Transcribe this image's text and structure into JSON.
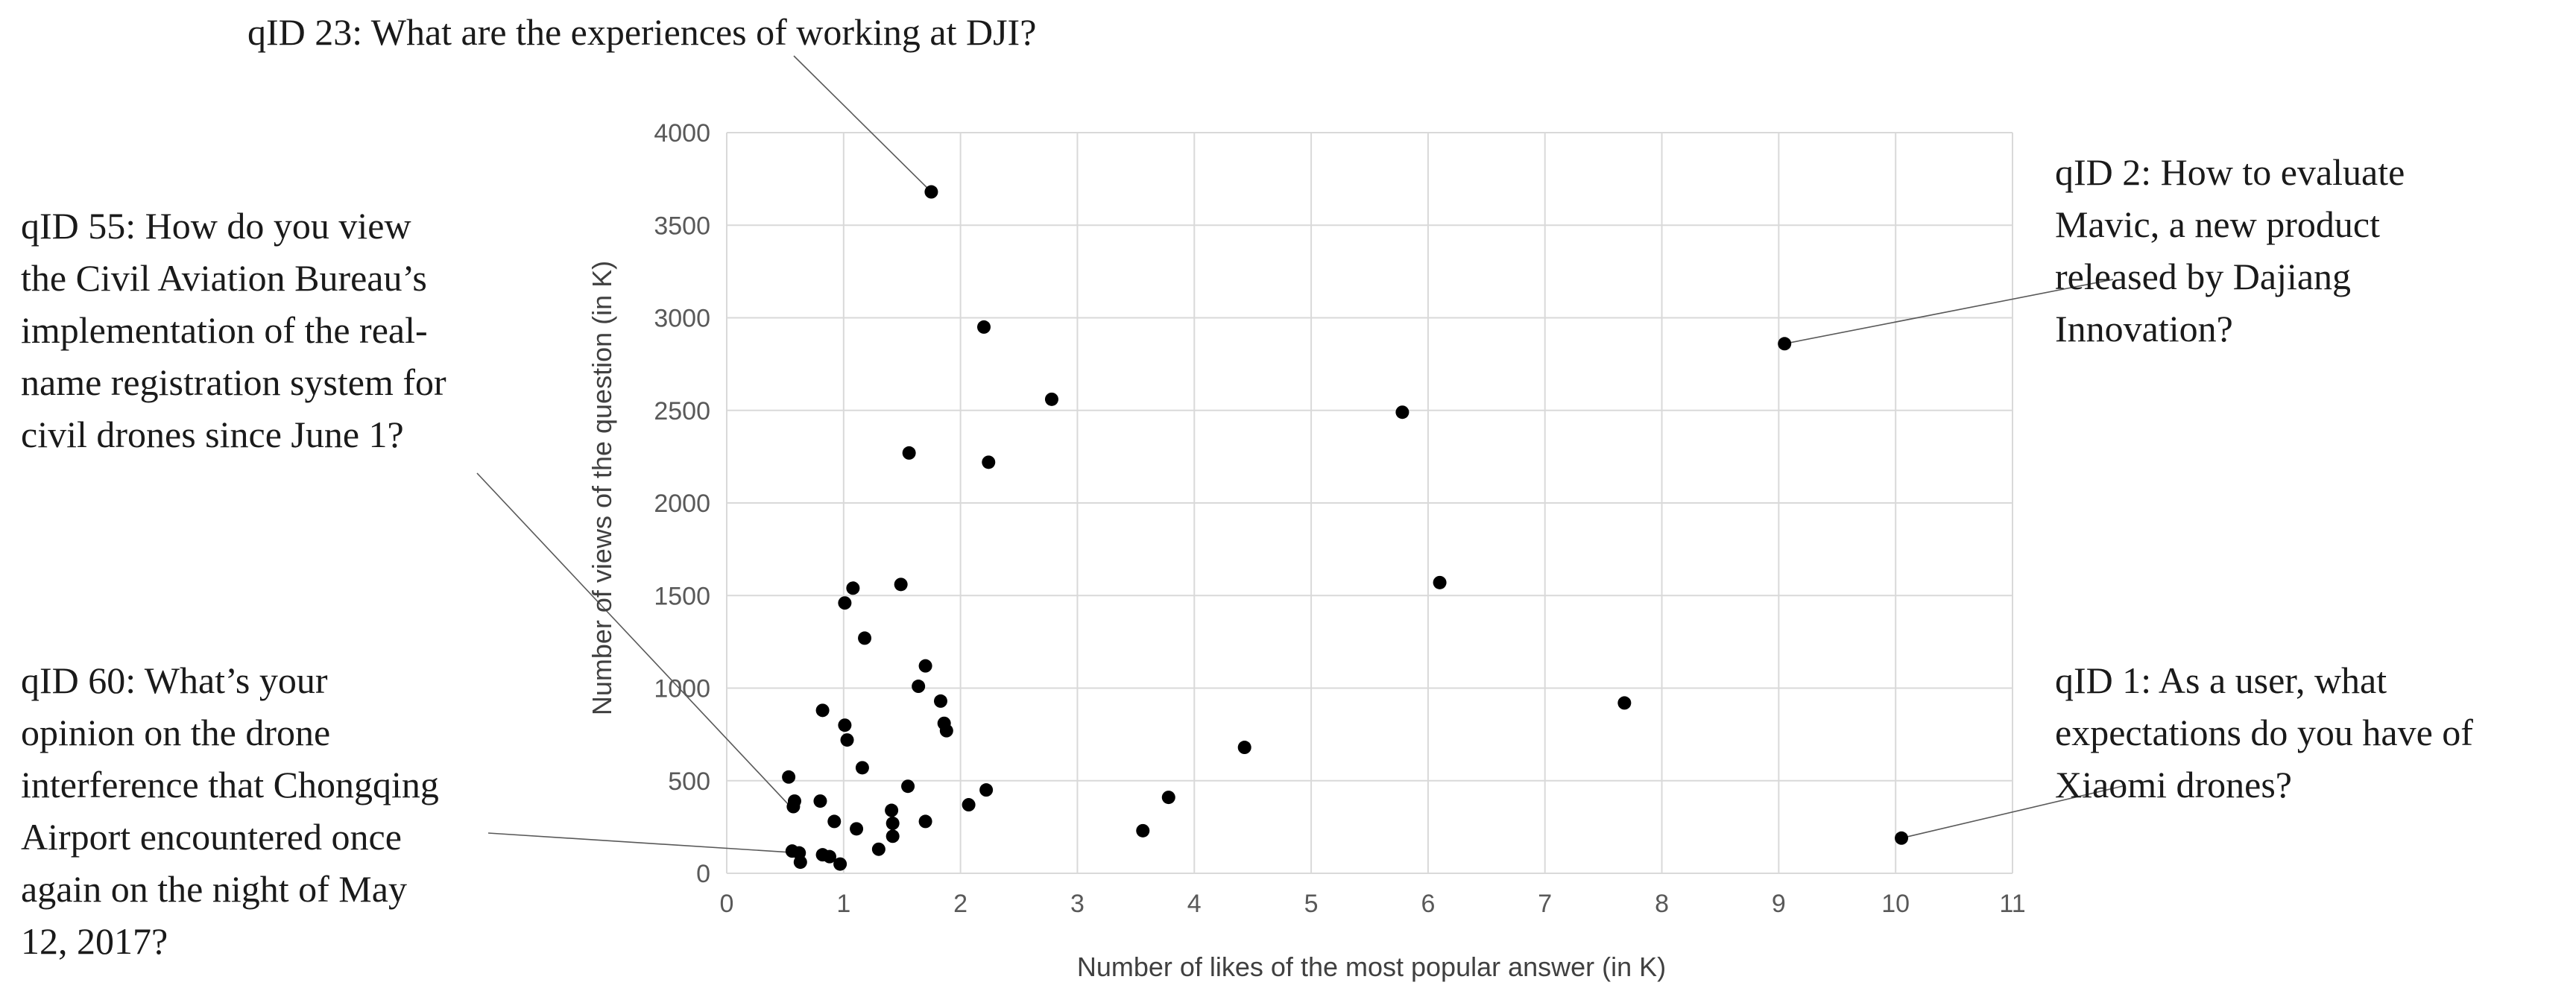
{
  "chart_data": {
    "type": "scatter",
    "title": "",
    "xlabel": "Number of likes of the most popular answer (in K)",
    "ylabel": "Number of views of the question (in K)",
    "xlim": [
      0,
      11
    ],
    "ylim": [
      0,
      4000
    ],
    "xticks": [
      "0",
      "1",
      "2",
      "3",
      "4",
      "5",
      "6",
      "7",
      "8",
      "9",
      "10",
      "11"
    ],
    "yticks": [
      "0",
      "500",
      "1000",
      "1500",
      "2000",
      "2500",
      "3000",
      "3500",
      "4000"
    ],
    "grid": true,
    "legend": "none",
    "point_color": "#000000",
    "points": [
      {
        "x": 1.75,
        "y": 3680
      },
      {
        "x": 2.2,
        "y": 2950
      },
      {
        "x": 2.78,
        "y": 2560
      },
      {
        "x": 1.56,
        "y": 2270
      },
      {
        "x": 2.24,
        "y": 2220
      },
      {
        "x": 5.78,
        "y": 2490
      },
      {
        "x": 9.05,
        "y": 2860
      },
      {
        "x": 6.1,
        "y": 1570
      },
      {
        "x": 1.08,
        "y": 1540
      },
      {
        "x": 1.49,
        "y": 1560
      },
      {
        "x": 1.01,
        "y": 1460
      },
      {
        "x": 1.18,
        "y": 1270
      },
      {
        "x": 1.7,
        "y": 1120
      },
      {
        "x": 1.64,
        "y": 1010
      },
      {
        "x": 1.83,
        "y": 930
      },
      {
        "x": 7.68,
        "y": 920
      },
      {
        "x": 0.82,
        "y": 880
      },
      {
        "x": 1.86,
        "y": 810
      },
      {
        "x": 1.88,
        "y": 770
      },
      {
        "x": 1.01,
        "y": 800
      },
      {
        "x": 1.03,
        "y": 720
      },
      {
        "x": 4.43,
        "y": 680
      },
      {
        "x": 1.16,
        "y": 570
      },
      {
        "x": 0.53,
        "y": 520
      },
      {
        "x": 1.55,
        "y": 470
      },
      {
        "x": 2.22,
        "y": 450
      },
      {
        "x": 0.58,
        "y": 390
      },
      {
        "x": 0.57,
        "y": 360
      },
      {
        "x": 0.8,
        "y": 390
      },
      {
        "x": 3.78,
        "y": 410
      },
      {
        "x": 2.07,
        "y": 370
      },
      {
        "x": 1.41,
        "y": 340
      },
      {
        "x": 1.42,
        "y": 270
      },
      {
        "x": 0.92,
        "y": 280
      },
      {
        "x": 1.7,
        "y": 280
      },
      {
        "x": 1.11,
        "y": 240
      },
      {
        "x": 3.56,
        "y": 230
      },
      {
        "x": 1.42,
        "y": 200
      },
      {
        "x": 10.05,
        "y": 190
      },
      {
        "x": 1.3,
        "y": 130
      },
      {
        "x": 0.56,
        "y": 120
      },
      {
        "x": 0.62,
        "y": 110
      },
      {
        "x": 0.82,
        "y": 100
      },
      {
        "x": 0.88,
        "y": 90
      },
      {
        "x": 0.63,
        "y": 60
      },
      {
        "x": 0.97,
        "y": 50
      }
    ],
    "annotations": [
      {
        "lines": [
          "qID 23: What are the experiences of working at DJI?"
        ],
        "target": {
          "x": 1.75,
          "y": 3680
        }
      },
      {
        "lines": [
          "qID 2: How to evaluate",
          "Mavic, a new product",
          "released by Dajiang",
          "Innovation?"
        ],
        "target": {
          "x": 9.05,
          "y": 2860
        }
      },
      {
        "lines": [
          "qID 55: How do you view",
          "the Civil Aviation Bureau’s",
          "implementation of the real-",
          "name registration system for",
          "civil drones since June 1?"
        ],
        "target": {
          "x": 0.53,
          "y": 370
        }
      },
      {
        "lines": [
          "qID 60: What’s your",
          "opinion on the drone",
          "interference that Chongqing",
          "Airport encountered once",
          "again on the night of May",
          "12, 2017?"
        ],
        "target": {
          "x": 0.62,
          "y": 110
        }
      },
      {
        "lines": [
          "qID 1: As a user, what",
          "expectations do you have of",
          "Xiaomi drones?"
        ],
        "target": {
          "x": 10.05,
          "y": 190
        }
      }
    ]
  }
}
